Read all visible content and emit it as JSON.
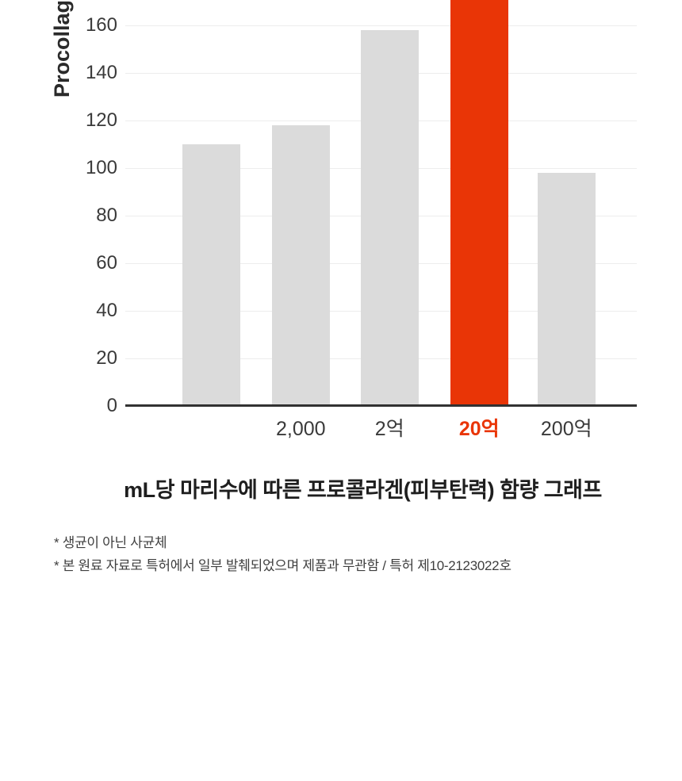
{
  "chart_data": {
    "type": "bar",
    "title": "mL당 마리수에 따른 프로콜라겐(피부탄력) 함량 그래프",
    "ylabel": "Procollagen",
    "xlabel": "",
    "categories": [
      "",
      "2,000",
      "2억",
      "20억",
      "200억"
    ],
    "values": [
      110,
      118,
      158,
      null,
      98
    ],
    "highlight_index": 3,
    "highlight_note": "highlighted bar is cut off at the top edge of the image (value above visible range)",
    "yticks": [
      0,
      20,
      40,
      60,
      80,
      100,
      120,
      140,
      160
    ],
    "ylim_visible": [
      0,
      170
    ],
    "grid": true,
    "legend": "none",
    "colors": {
      "bar": "#dbdbdb",
      "highlight": "#e93506",
      "grid": "#ededed",
      "axis_line": "#323232",
      "tick_text": "#3a3a3a"
    }
  },
  "footnotes": [
    "* 생균이 아닌 사균체",
    "* 본 원료 자료로 특허에서 일부 발췌되었으며 제품과 무관함 / 특허 제10-2123022호"
  ]
}
